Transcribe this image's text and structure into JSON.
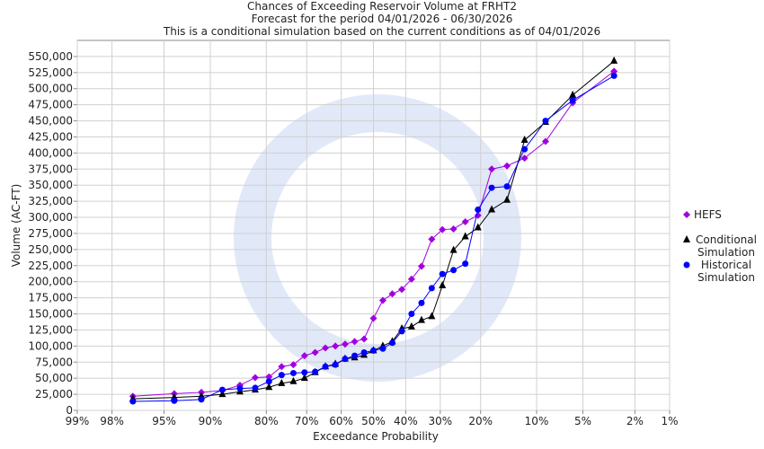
{
  "chart_data": {
    "type": "line",
    "title": "Chances of Exceeding Reservoir Volume at FRHT2",
    "subtitle": "Forecast for the period 04/01/2026 - 06/30/2026",
    "note": "This is a conditional simulation based on the current conditions as of 04/01/2026",
    "x_label": "Exceedance Probability",
    "y_label": "Volume (AC-FT)",
    "x_scale": "normal-probability",
    "grid": true,
    "legend": "right",
    "x": [
      97.06,
      94.12,
      91.18,
      88.24,
      85.29,
      82.35,
      79.41,
      76.47,
      73.53,
      70.59,
      67.65,
      64.71,
      61.76,
      58.82,
      55.88,
      52.94,
      50,
      47.06,
      44.12,
      41.18,
      38.24,
      35.29,
      32.35,
      29.41,
      26.47,
      23.53,
      20.59,
      17.65,
      14.71,
      11.76,
      8.82,
      5.88,
      2.94
    ],
    "series": [
      {
        "name": "HEFS",
        "color": "#a000e0",
        "marker": "diamond",
        "values": [
          22000,
          26000,
          28000,
          31000,
          39000,
          51000,
          52000,
          68000,
          71000,
          85000,
          90000,
          97000,
          100000,
          103000,
          107000,
          111000,
          143000,
          171000,
          181000,
          188000,
          204000,
          224000,
          266000,
          281000,
          282000,
          293000,
          303000,
          375000,
          380000,
          392000,
          418000,
          478000,
          527000
        ]
      },
      {
        "name": "Conditional Simulation",
        "color": "#000000",
        "marker": "triangle",
        "values": [
          18000,
          20000,
          22000,
          25000,
          29000,
          32000,
          36000,
          42000,
          45000,
          50000,
          59000,
          68000,
          72000,
          80000,
          82000,
          86000,
          93000,
          100000,
          107000,
          127000,
          130000,
          140000,
          146000,
          194000,
          249000,
          270000,
          284000,
          312000,
          327000,
          420000,
          448000,
          490000,
          543000
        ]
      },
      {
        "name": "Historical Simulation",
        "color": "#0000ff",
        "marker": "circle",
        "values": [
          14000,
          15000,
          17000,
          32000,
          34000,
          35000,
          45000,
          55000,
          58000,
          59000,
          60000,
          68000,
          71000,
          80000,
          85000,
          90000,
          93000,
          96000,
          105000,
          123000,
          150000,
          167000,
          190000,
          212000,
          218000,
          228000,
          312000,
          346000,
          348000,
          406000,
          450000,
          482000,
          520000
        ]
      }
    ],
    "xlim": [
      99,
      1
    ],
    "xticks": [
      {
        "value": 99,
        "label": "99%"
      },
      {
        "value": 98,
        "label": "98%"
      },
      {
        "value": 95,
        "label": "95%"
      },
      {
        "value": 90,
        "label": "90%"
      },
      {
        "value": 80,
        "label": "80%"
      },
      {
        "value": 70,
        "label": "70%"
      },
      {
        "value": 60,
        "label": "60%"
      },
      {
        "value": 50,
        "label": "50%"
      },
      {
        "value": 40,
        "label": "40%"
      },
      {
        "value": 30,
        "label": "30%"
      },
      {
        "value": 20,
        "label": "20%"
      },
      {
        "value": 10,
        "label": "10%"
      },
      {
        "value": 5,
        "label": "5%"
      },
      {
        "value": 2,
        "label": "2%"
      },
      {
        "value": 1,
        "label": "1%"
      }
    ],
    "ylim": [
      0,
      575000
    ],
    "yticks": [
      0,
      {
        "value": 25000,
        "label": "25,000"
      },
      {
        "value": 50000,
        "label": "50,000"
      },
      {
        "value": 75000,
        "label": "75,000"
      },
      {
        "value": 100000,
        "label": "100,000"
      },
      {
        "value": 125000,
        "label": "125,000"
      },
      {
        "value": 150000,
        "label": "150,000"
      },
      {
        "value": 175000,
        "label": "175,000"
      },
      {
        "value": 200000,
        "label": "200,000"
      },
      {
        "value": 225000,
        "label": "225,000"
      },
      {
        "value": 250000,
        "label": "250,000"
      },
      {
        "value": 275000,
        "label": "275,000"
      },
      {
        "value": 300000,
        "label": "300,000"
      },
      {
        "value": 325000,
        "label": "325,000"
      },
      {
        "value": 350000,
        "label": "350,000"
      },
      {
        "value": 375000,
        "label": "375,000"
      },
      {
        "value": 400000,
        "label": "400,000"
      },
      {
        "value": 425000,
        "label": "425,000"
      },
      {
        "value": 450000,
        "label": "450,000"
      },
      {
        "value": 475000,
        "label": "475,000"
      },
      {
        "value": 500000,
        "label": "500,000"
      },
      {
        "value": 525000,
        "label": "525,000"
      },
      {
        "value": 550000,
        "label": "550,000"
      }
    ]
  }
}
